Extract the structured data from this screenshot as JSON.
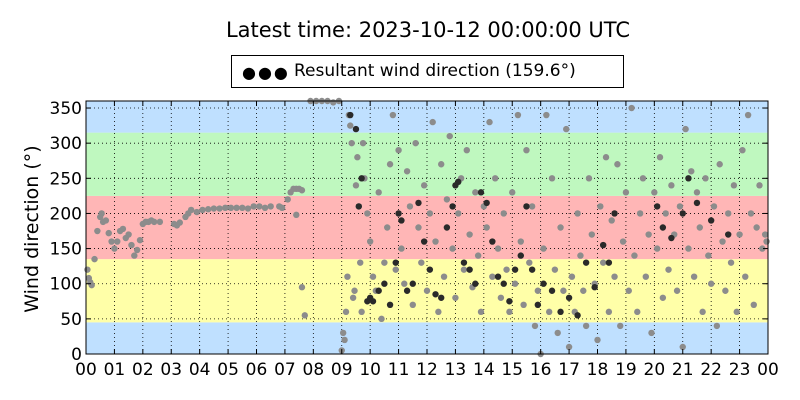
{
  "title": "Latest time: 2023-10-12 00:00:00 UTC",
  "legend": {
    "label": "Resultant wind direction (159.6°)"
  },
  "chart_data": {
    "type": "scatter",
    "ylabel": "Wind direction (°)",
    "xlabel": "",
    "xlim": [
      0,
      24
    ],
    "ylim": [
      0,
      360
    ],
    "x_ticks": [
      "00",
      "01",
      "02",
      "03",
      "04",
      "05",
      "06",
      "07",
      "08",
      "09",
      "10",
      "11",
      "12",
      "13",
      "14",
      "15",
      "16",
      "17",
      "18",
      "19",
      "20",
      "21",
      "22",
      "23",
      "00"
    ],
    "y_ticks": [
      0,
      50,
      100,
      150,
      200,
      250,
      300,
      350
    ],
    "grid": true,
    "background_bands": [
      {
        "from": 0,
        "to": 45,
        "color": "#bfe0ff"
      },
      {
        "from": 45,
        "to": 135,
        "color": "#ffffa8"
      },
      {
        "from": 135,
        "to": 225,
        "color": "#ffb6b6"
      },
      {
        "from": 225,
        "to": 315,
        "color": "#bff8bf"
      },
      {
        "from": 315,
        "to": 360,
        "color": "#bfe0ff"
      }
    ],
    "series_colors": {
      "light": "#8c8c8c",
      "dark": "#2a2a2a"
    },
    "series": [
      {
        "name": "",
        "color": "#8c8c8c",
        "points": [
          [
            0.05,
            120
          ],
          [
            0.1,
            108
          ],
          [
            0.15,
            102
          ],
          [
            0.2,
            98
          ],
          [
            0.3,
            135
          ],
          [
            0.4,
            175
          ],
          [
            0.5,
            195
          ],
          [
            0.55,
            200
          ],
          [
            0.6,
            188
          ],
          [
            0.7,
            190
          ],
          [
            0.8,
            172
          ],
          [
            0.9,
            160
          ],
          [
            1.0,
            150
          ],
          [
            1.1,
            160
          ],
          [
            1.2,
            175
          ],
          [
            1.3,
            178
          ],
          [
            1.4,
            165
          ],
          [
            1.5,
            170
          ],
          [
            1.6,
            155
          ],
          [
            1.7,
            140
          ],
          [
            1.8,
            148
          ],
          [
            1.9,
            162
          ],
          [
            2.0,
            185
          ],
          [
            2.1,
            188
          ],
          [
            2.2,
            188
          ],
          [
            2.3,
            190
          ],
          [
            2.4,
            188
          ],
          [
            2.6,
            188
          ],
          [
            3.1,
            185
          ],
          [
            3.2,
            183
          ],
          [
            3.3,
            187
          ],
          [
            3.5,
            195
          ],
          [
            3.6,
            200
          ],
          [
            3.7,
            205
          ],
          [
            3.9,
            202
          ],
          [
            4.1,
            205
          ],
          [
            4.3,
            206
          ],
          [
            4.5,
            207
          ],
          [
            4.7,
            207
          ],
          [
            4.9,
            208
          ],
          [
            5.1,
            208
          ],
          [
            5.3,
            208
          ],
          [
            5.5,
            208
          ],
          [
            5.7,
            207
          ],
          [
            5.9,
            210
          ],
          [
            6.1,
            210
          ],
          [
            6.3,
            208
          ],
          [
            6.5,
            210
          ],
          [
            6.8,
            210
          ],
          [
            6.9,
            208
          ],
          [
            7.1,
            220
          ],
          [
            7.2,
            230
          ],
          [
            7.3,
            235
          ],
          [
            7.4,
            235
          ],
          [
            7.5,
            235
          ],
          [
            7.6,
            233
          ],
          [
            7.4,
            198
          ],
          [
            7.6,
            95
          ],
          [
            7.7,
            55
          ],
          [
            7.9,
            360
          ],
          [
            8.1,
            360
          ],
          [
            8.3,
            360
          ],
          [
            8.5,
            360
          ],
          [
            8.7,
            358
          ],
          [
            8.9,
            360
          ],
          [
            9.0,
            5
          ],
          [
            9.05,
            30
          ],
          [
            9.1,
            20
          ],
          [
            9.15,
            60
          ],
          [
            9.2,
            110
          ],
          [
            9.25,
            340
          ],
          [
            9.3,
            325
          ],
          [
            9.35,
            300
          ],
          [
            9.4,
            80
          ],
          [
            9.45,
            90
          ],
          [
            9.5,
            240
          ],
          [
            9.55,
            280
          ],
          [
            9.6,
            210
          ],
          [
            9.65,
            130
          ],
          [
            9.7,
            60
          ],
          [
            9.75,
            300
          ],
          [
            9.8,
            250
          ],
          [
            9.9,
            200
          ],
          [
            10.0,
            160
          ],
          [
            10.1,
            110
          ],
          [
            10.2,
            90
          ],
          [
            10.3,
            230
          ],
          [
            10.4,
            50
          ],
          [
            10.5,
            130
          ],
          [
            10.6,
            180
          ],
          [
            10.7,
            270
          ],
          [
            10.8,
            340
          ],
          [
            10.9,
            120
          ],
          [
            11.0,
            290
          ],
          [
            11.1,
            150
          ],
          [
            11.2,
            100
          ],
          [
            11.3,
            260
          ],
          [
            11.4,
            210
          ],
          [
            11.5,
            70
          ],
          [
            11.6,
            300
          ],
          [
            11.7,
            180
          ],
          [
            11.8,
            130
          ],
          [
            11.9,
            240
          ],
          [
            12.0,
            90
          ],
          [
            12.1,
            200
          ],
          [
            12.2,
            330
          ],
          [
            12.3,
            160
          ],
          [
            12.4,
            60
          ],
          [
            12.5,
            270
          ],
          [
            12.6,
            110
          ],
          [
            12.7,
            220
          ],
          [
            12.8,
            310
          ],
          [
            12.9,
            150
          ],
          [
            13.0,
            80
          ],
          [
            13.1,
            200
          ],
          [
            13.2,
            250
          ],
          [
            13.3,
            120
          ],
          [
            13.4,
            290
          ],
          [
            13.5,
            170
          ],
          [
            13.6,
            95
          ],
          [
            13.7,
            230
          ],
          [
            13.8,
            140
          ],
          [
            13.9,
            60
          ],
          [
            14.0,
            210
          ],
          [
            14.1,
            180
          ],
          [
            14.2,
            330
          ],
          [
            14.3,
            110
          ],
          [
            14.4,
            250
          ],
          [
            14.5,
            150
          ],
          [
            14.6,
            80
          ],
          [
            14.7,
            200
          ],
          [
            14.8,
            120
          ],
          [
            14.9,
            60
          ],
          [
            15.0,
            230
          ],
          [
            15.1,
            100
          ],
          [
            15.2,
            340
          ],
          [
            15.3,
            160
          ],
          [
            15.4,
            70
          ],
          [
            15.5,
            290
          ],
          [
            15.6,
            130
          ],
          [
            15.7,
            210
          ],
          [
            15.8,
            40
          ],
          [
            15.9,
            90
          ],
          [
            16.0,
            0
          ],
          [
            16.1,
            150
          ],
          [
            16.2,
            340
          ],
          [
            16.3,
            60
          ],
          [
            16.4,
            250
          ],
          [
            16.5,
            120
          ],
          [
            16.6,
            30
          ],
          [
            16.7,
            180
          ],
          [
            16.8,
            90
          ],
          [
            16.9,
            320
          ],
          [
            17.0,
            10
          ],
          [
            17.1,
            110
          ],
          [
            17.2,
            60
          ],
          [
            17.3,
            200
          ],
          [
            17.4,
            140
          ],
          [
            17.5,
            90
          ],
          [
            17.6,
            40
          ],
          [
            17.7,
            250
          ],
          [
            17.8,
            170
          ],
          [
            17.9,
            100
          ],
          [
            18.0,
            20
          ],
          [
            18.1,
            210
          ],
          [
            18.2,
            130
          ],
          [
            18.3,
            280
          ],
          [
            18.4,
            60
          ],
          [
            18.5,
            190
          ],
          [
            18.6,
            110
          ],
          [
            18.7,
            270
          ],
          [
            18.8,
            40
          ],
          [
            18.9,
            160
          ],
          [
            19.0,
            230
          ],
          [
            19.1,
            90
          ],
          [
            19.2,
            350
          ],
          [
            19.3,
            140
          ],
          [
            19.4,
            60
          ],
          [
            19.5,
            200
          ],
          [
            19.6,
            250
          ],
          [
            19.7,
            110
          ],
          [
            19.8,
            170
          ],
          [
            19.9,
            30
          ],
          [
            20.0,
            230
          ],
          [
            20.1,
            150
          ],
          [
            20.2,
            280
          ],
          [
            20.3,
            80
          ],
          [
            20.4,
            200
          ],
          [
            20.5,
            120
          ],
          [
            20.6,
            240
          ],
          [
            20.7,
            170
          ],
          [
            20.8,
            90
          ],
          [
            20.9,
            210
          ],
          [
            21.0,
            10
          ],
          [
            21.1,
            320
          ],
          [
            21.2,
            150
          ],
          [
            21.3,
            260
          ],
          [
            21.4,
            110
          ],
          [
            21.5,
            230
          ],
          [
            21.6,
            180
          ],
          [
            21.7,
            60
          ],
          [
            21.8,
            250
          ],
          [
            21.9,
            140
          ],
          [
            22.0,
            100
          ],
          [
            22.1,
            210
          ],
          [
            22.2,
            40
          ],
          [
            22.3,
            270
          ],
          [
            22.4,
            160
          ],
          [
            22.5,
            90
          ],
          [
            22.6,
            200
          ],
          [
            22.7,
            130
          ],
          [
            22.8,
            240
          ],
          [
            22.9,
            60
          ],
          [
            23.0,
            170
          ],
          [
            23.1,
            290
          ],
          [
            23.2,
            110
          ],
          [
            23.3,
            340
          ],
          [
            23.4,
            200
          ],
          [
            23.5,
            70
          ],
          [
            23.6,
            180
          ],
          [
            23.7,
            240
          ],
          [
            23.8,
            150
          ],
          [
            23.9,
            170
          ],
          [
            23.95,
            160
          ]
        ]
      },
      {
        "name": "",
        "color": "#2a2a2a",
        "points": [
          [
            9.3,
            340
          ],
          [
            9.5,
            320
          ],
          [
            9.6,
            210
          ],
          [
            9.7,
            250
          ],
          [
            9.9,
            75
          ],
          [
            10.0,
            80
          ],
          [
            10.1,
            75
          ],
          [
            10.3,
            90
          ],
          [
            10.5,
            100
          ],
          [
            10.7,
            70
          ],
          [
            10.9,
            130
          ],
          [
            11.0,
            200
          ],
          [
            11.1,
            190
          ],
          [
            11.3,
            90
          ],
          [
            11.5,
            100
          ],
          [
            11.7,
            215
          ],
          [
            11.9,
            160
          ],
          [
            12.1,
            120
          ],
          [
            12.3,
            85
          ],
          [
            12.5,
            80
          ],
          [
            12.7,
            180
          ],
          [
            12.9,
            210
          ],
          [
            13.0,
            240
          ],
          [
            13.1,
            245
          ],
          [
            13.3,
            130
          ],
          [
            13.5,
            120
          ],
          [
            13.7,
            100
          ],
          [
            13.9,
            230
          ],
          [
            14.1,
            215
          ],
          [
            14.3,
            160
          ],
          [
            14.5,
            110
          ],
          [
            14.7,
            100
          ],
          [
            14.9,
            75
          ],
          [
            15.1,
            120
          ],
          [
            15.3,
            140
          ],
          [
            15.5,
            210
          ],
          [
            15.7,
            120
          ],
          [
            15.9,
            70
          ],
          [
            16.1,
            100
          ],
          [
            16.4,
            90
          ],
          [
            16.7,
            60
          ],
          [
            17.0,
            80
          ],
          [
            17.3,
            55
          ],
          [
            17.6,
            130
          ],
          [
            17.9,
            95
          ],
          [
            18.2,
            155
          ],
          [
            18.4,
            130
          ],
          [
            18.6,
            200
          ],
          [
            20.1,
            210
          ],
          [
            20.3,
            180
          ],
          [
            20.6,
            165
          ],
          [
            21.0,
            200
          ],
          [
            21.2,
            250
          ],
          [
            21.5,
            215
          ],
          [
            22.0,
            190
          ],
          [
            22.6,
            170
          ]
        ]
      }
    ]
  }
}
